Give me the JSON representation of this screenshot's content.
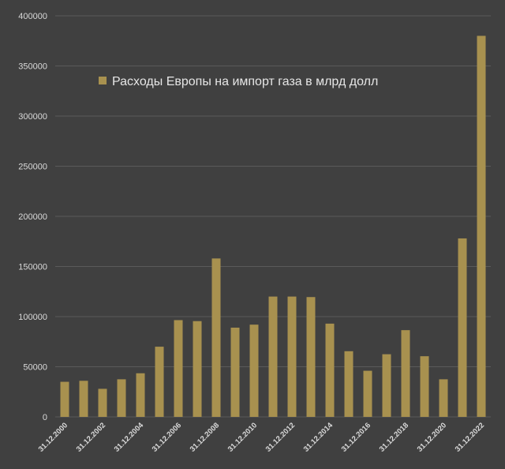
{
  "chart_data": {
    "type": "bar",
    "categories": [
      "31.12.2000",
      "31.12.2001",
      "31.12.2002",
      "31.12.2003",
      "31.12.2004",
      "31.12.2005",
      "31.12.2006",
      "31.12.2007",
      "31.12.2008",
      "31.12.2009",
      "31.12.2010",
      "31.12.2011",
      "31.12.2012",
      "31.12.2013",
      "31.12.2014",
      "31.12.2015",
      "31.12.2016",
      "31.12.2017",
      "31.12.2018",
      "31.12.2019",
      "31.12.2020",
      "31.12.2021",
      "31.12.2022"
    ],
    "x_tick_labels": [
      "31.12.2000",
      "31.12.2002",
      "31.12.2004",
      "31.12.2006",
      "31.12.2008",
      "31.12.2010",
      "31.12.2012",
      "31.12.2014",
      "31.12.2016",
      "31.12.2018",
      "31.12.2020",
      "31.12.2022"
    ],
    "series": [
      {
        "name": "Расходы Европы на импорт газа в млрд долл",
        "values": [
          35000,
          36000,
          28000,
          37500,
          43500,
          70000,
          96500,
          95500,
          158000,
          89000,
          92000,
          120000,
          120000,
          119500,
          93000,
          65500,
          46000,
          62500,
          86500,
          60500,
          37500,
          178000,
          380000
        ]
      }
    ],
    "ylim": [
      0,
      400000
    ],
    "y_ticks": [
      0,
      50000,
      100000,
      150000,
      200000,
      250000,
      300000,
      350000,
      400000
    ],
    "grid": true,
    "legend_position": "top-left",
    "colors": {
      "bar": "#a8914f",
      "background": "#404040",
      "grid": "#5a5a5a",
      "text": "#d9d9d9"
    }
  }
}
